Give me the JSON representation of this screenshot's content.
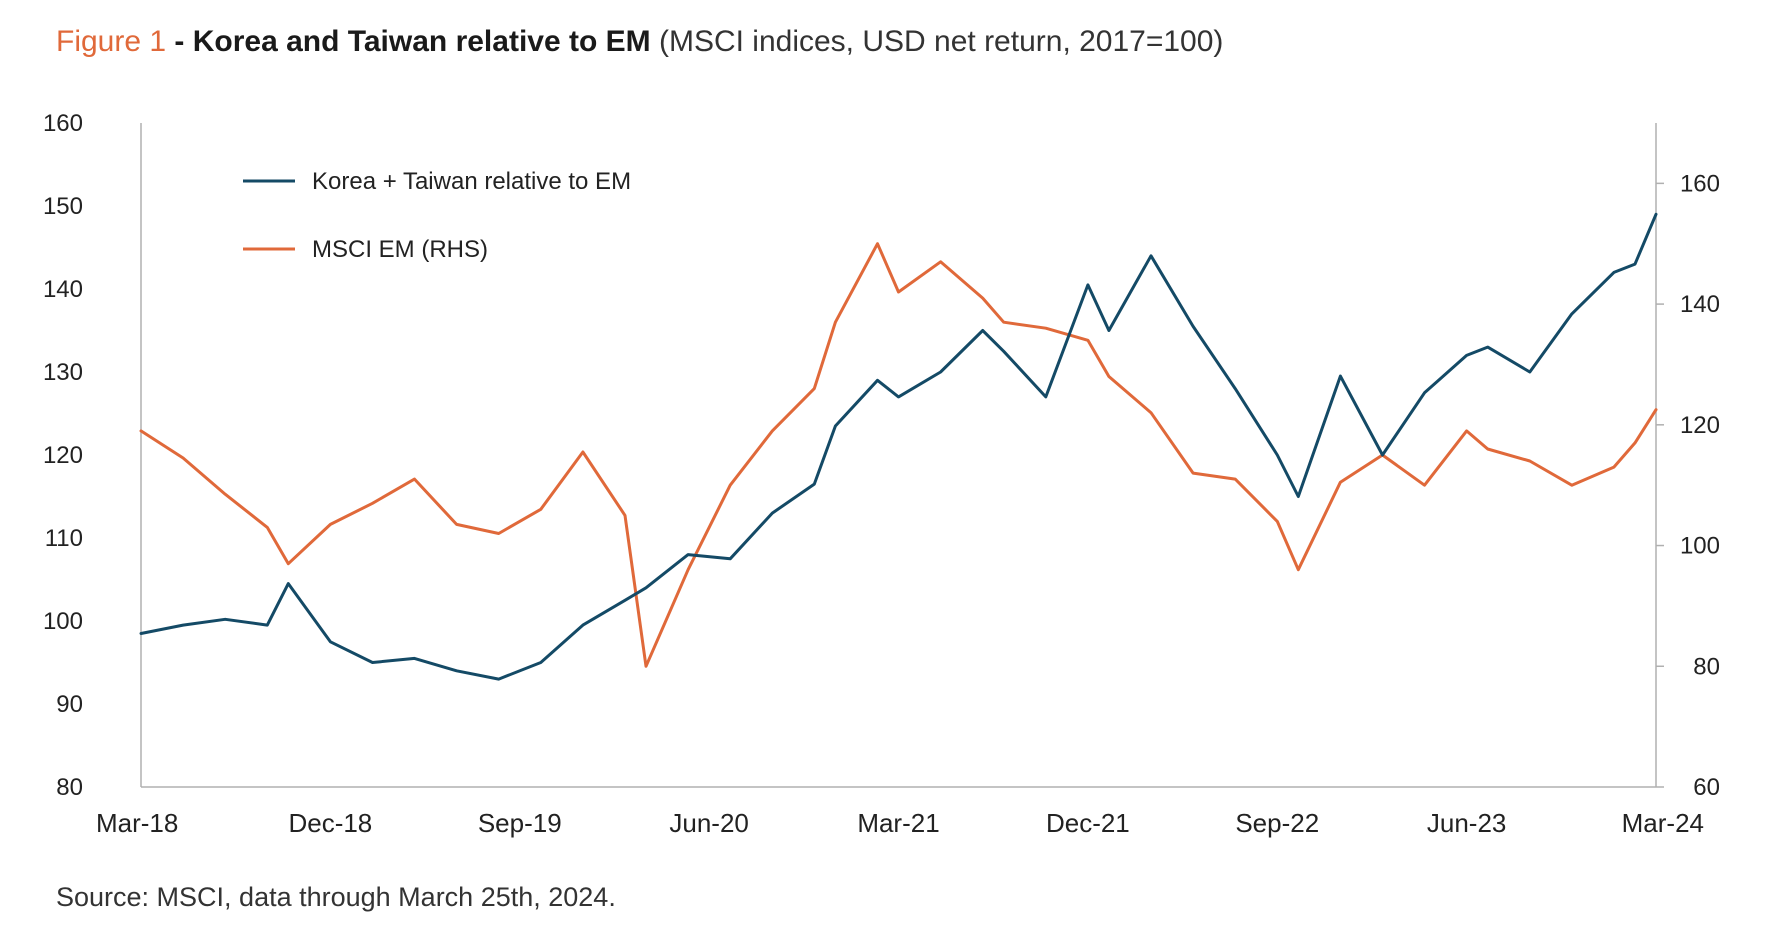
{
  "title": {
    "figure_label": "Figure 1",
    "separator": " - ",
    "main": "Korea and Taiwan relative to EM",
    "subtitle": " (MSCI indices, USD net return, 2017=100)"
  },
  "source": "Source: MSCI, data through March 25th, 2024.",
  "colors": {
    "figure_label": "#e0693a",
    "series1": "#144a66",
    "series2": "#e0693a",
    "axis": "#b0b0b0"
  },
  "chart_data": {
    "type": "line",
    "x_tick_labels": [
      "Mar-18",
      "Dec-18",
      "Sep-19",
      "Jun-20",
      "Mar-21",
      "Dec-21",
      "Sep-22",
      "Jun-23",
      "Mar-24"
    ],
    "x_range": [
      "2018-03",
      "2024-03"
    ],
    "y_left": {
      "ticks": [
        80,
        90,
        100,
        110,
        120,
        130,
        140,
        150,
        160
      ],
      "range": [
        80,
        160
      ]
    },
    "y_right": {
      "ticks": [
        60,
        80,
        100,
        120,
        140,
        160
      ],
      "range": [
        60,
        170
      ]
    },
    "legend": "top-left",
    "grid": false,
    "series": [
      {
        "name": "Korea + Taiwan relative to EM",
        "axis": "left",
        "x": [
          "2018-03",
          "2018-05",
          "2018-07",
          "2018-09",
          "2018-10",
          "2018-12",
          "2019-02",
          "2019-04",
          "2019-06",
          "2019-08",
          "2019-10",
          "2019-12",
          "2020-02",
          "2020-03",
          "2020-05",
          "2020-07",
          "2020-09",
          "2020-11",
          "2020-12",
          "2021-02",
          "2021-03",
          "2021-05",
          "2021-07",
          "2021-08",
          "2021-10",
          "2021-12",
          "2022-01",
          "2022-03",
          "2022-05",
          "2022-07",
          "2022-09",
          "2022-10",
          "2022-12",
          "2023-02",
          "2023-04",
          "2023-06",
          "2023-07",
          "2023-09",
          "2023-11",
          "2024-01",
          "2024-02",
          "2024-03"
        ],
        "values": [
          98.5,
          99.5,
          100.2,
          99.5,
          104.5,
          97.5,
          95.0,
          95.5,
          94.0,
          93.0,
          95.0,
          99.5,
          102.5,
          104.0,
          108.0,
          107.5,
          113.0,
          116.5,
          123.5,
          129.0,
          127.0,
          130.0,
          135.0,
          132.5,
          127.0,
          140.5,
          135.0,
          144.0,
          135.5,
          128.0,
          120.0,
          115.0,
          129.5,
          120.0,
          127.5,
          132.0,
          133.0,
          130.0,
          137.0,
          142.0,
          143.0,
          149.0
        ]
      },
      {
        "name": "MSCI EM (RHS)",
        "axis": "right",
        "x": [
          "2018-03",
          "2018-05",
          "2018-07",
          "2018-09",
          "2018-10",
          "2018-12",
          "2019-02",
          "2019-04",
          "2019-06",
          "2019-08",
          "2019-10",
          "2019-12",
          "2020-02",
          "2020-03",
          "2020-05",
          "2020-07",
          "2020-09",
          "2020-11",
          "2020-12",
          "2021-02",
          "2021-03",
          "2021-05",
          "2021-07",
          "2021-08",
          "2021-10",
          "2021-12",
          "2022-01",
          "2022-03",
          "2022-05",
          "2022-07",
          "2022-09",
          "2022-10",
          "2022-12",
          "2023-02",
          "2023-04",
          "2023-06",
          "2023-07",
          "2023-09",
          "2023-11",
          "2024-01",
          "2024-02",
          "2024-03"
        ],
        "values": [
          119.0,
          114.5,
          108.5,
          103.0,
          97.0,
          103.5,
          107.0,
          111.0,
          103.5,
          102.0,
          106.0,
          115.5,
          105.0,
          80.0,
          96.0,
          110.0,
          119.0,
          126.0,
          137.0,
          150.0,
          142.0,
          147.0,
          141.0,
          137.0,
          136.0,
          134.0,
          128.0,
          122.0,
          112.0,
          111.0,
          104.0,
          96.0,
          110.5,
          115.0,
          110.0,
          119.0,
          116.0,
          114.0,
          110.0,
          113.0,
          117.0,
          122.5
        ]
      }
    ]
  }
}
